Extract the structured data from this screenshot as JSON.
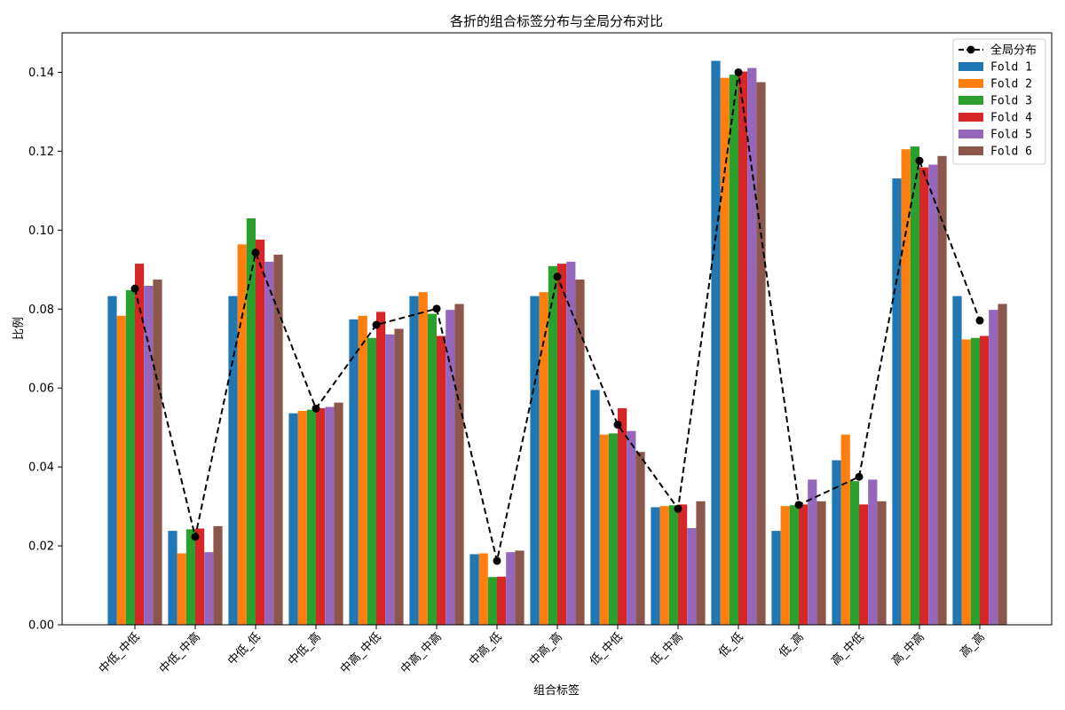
{
  "chart_data": {
    "type": "bar",
    "title": "各折的组合标签分布与全局分布对比",
    "xlabel": "组合标签",
    "ylabel": "比例",
    "ylim": [
      0,
      0.15
    ],
    "yticks": [
      0.0,
      0.02,
      0.04,
      0.06,
      0.08,
      0.1,
      0.12,
      0.14
    ],
    "ytick_labels": [
      "0.00",
      "0.02",
      "0.04",
      "0.06",
      "0.08",
      "0.10",
      "0.12",
      "0.14"
    ],
    "categories": [
      "中低_中低",
      "中低_中高",
      "中低_低",
      "中低_高",
      "中高_中低",
      "中高_中高",
      "中高_低",
      "中高_高",
      "低_中低",
      "低_中高",
      "低_低",
      "低_高",
      "高_中低",
      "高_中高",
      "高_高"
    ],
    "series": [
      {
        "name": "Fold 1",
        "color": "#1f77b4",
        "values": [
          0.0833,
          0.0238,
          0.0833,
          0.0536,
          0.0774,
          0.0833,
          0.0179,
          0.0833,
          0.0595,
          0.0298,
          0.1429,
          0.0238,
          0.0417,
          0.1131,
          0.0833
        ]
      },
      {
        "name": "Fold 2",
        "color": "#ff7f0e",
        "values": [
          0.0783,
          0.0181,
          0.0964,
          0.0542,
          0.0783,
          0.0843,
          0.0181,
          0.0843,
          0.0482,
          0.0301,
          0.1386,
          0.0301,
          0.0482,
          0.1205,
          0.0723
        ]
      },
      {
        "name": "Fold 3",
        "color": "#2ca02c",
        "values": [
          0.0848,
          0.0242,
          0.103,
          0.0545,
          0.0727,
          0.0788,
          0.0121,
          0.0909,
          0.0485,
          0.0303,
          0.1394,
          0.0303,
          0.0364,
          0.1212,
          0.0727
        ]
      },
      {
        "name": "Fold 4",
        "color": "#d62728",
        "values": [
          0.0915,
          0.0244,
          0.0976,
          0.0549,
          0.0793,
          0.0732,
          0.0122,
          0.0915,
          0.0549,
          0.0305,
          0.1402,
          0.0305,
          0.0305,
          0.1159,
          0.0732
        ]
      },
      {
        "name": "Fold 5",
        "color": "#9467bd",
        "values": [
          0.0859,
          0.0184,
          0.092,
          0.0552,
          0.0736,
          0.0798,
          0.0184,
          0.092,
          0.0491,
          0.0245,
          0.1411,
          0.0368,
          0.0368,
          0.1166,
          0.0798
        ]
      },
      {
        "name": "Fold 6",
        "color": "#8c564b",
        "values": [
          0.0875,
          0.025,
          0.0938,
          0.0563,
          0.075,
          0.0813,
          0.0188,
          0.0875,
          0.0438,
          0.0313,
          0.1375,
          0.0313,
          0.0313,
          0.1188,
          0.0813
        ]
      }
    ],
    "global": {
      "name": "全局分布",
      "color": "#000000",
      "style": "dashed-with-circle-markers",
      "values": [
        0.0852,
        0.0223,
        0.0943,
        0.0548,
        0.076,
        0.0801,
        0.0162,
        0.0882,
        0.0507,
        0.0294,
        0.14,
        0.0304,
        0.0375,
        0.1176,
        0.0771
      ]
    },
    "legend_position": "top-right",
    "grid": false
  }
}
